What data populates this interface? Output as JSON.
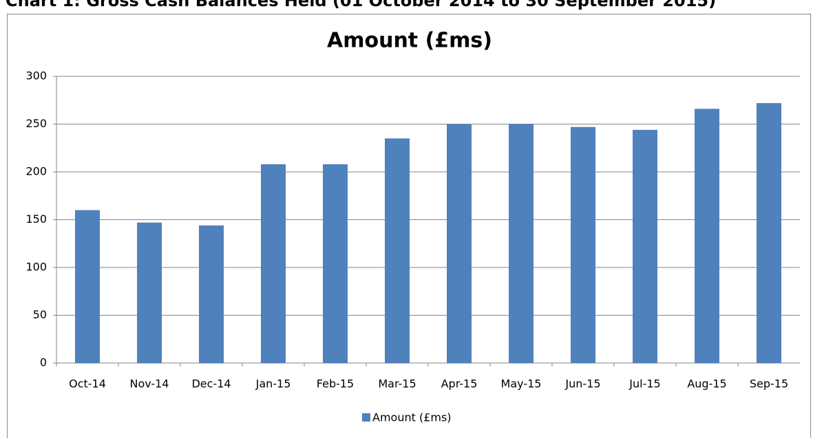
{
  "heading": "Chart 1: Gross Cash Balances Held (01 October 2014 to 30 September 2015)",
  "chart_data": {
    "type": "bar",
    "title": "Amount (£ms)",
    "categories": [
      "Oct-14",
      "Nov-14",
      "Dec-14",
      "Jan-15",
      "Feb-15",
      "Mar-15",
      "Apr-15",
      "May-15",
      "Jun-15",
      "Jul-15",
      "Aug-15",
      "Sep-15"
    ],
    "series": [
      {
        "name": "Amount (£ms)",
        "color": "#4f81bd",
        "values": [
          160,
          147,
          144,
          208,
          208,
          235,
          250,
          250,
          247,
          244,
          266,
          272
        ]
      }
    ],
    "ylim": [
      0,
      300
    ],
    "yticks": [
      0,
      50,
      100,
      150,
      200,
      250,
      300
    ],
    "grid": true,
    "legend": "bottom"
  }
}
